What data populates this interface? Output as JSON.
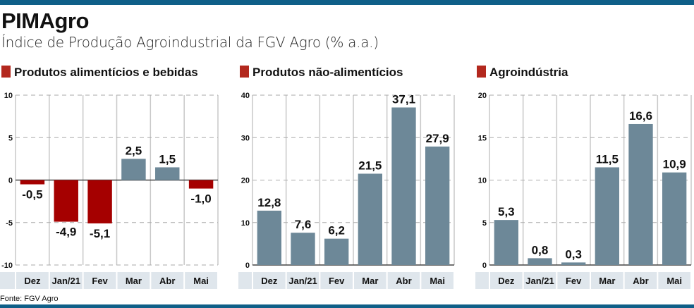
{
  "header": {
    "title": "PIMAgro",
    "subtitle": "Índice de Produção Agroindustrial da FGV Agro (% a.a.)"
  },
  "source": "Fonte: FGV Agro",
  "colors": {
    "bar": "#6d8898",
    "negative": "#a50000",
    "legend_marker": "#b3281e",
    "band": "#dfe6ec",
    "rule": "#0f5f88"
  },
  "chart_data": [
    {
      "type": "bar",
      "title": "Produtos alimentícios e bebidas",
      "categories": [
        "Dez",
        "Jan/21",
        "Fev",
        "Mar",
        "Abr",
        "Mai"
      ],
      "values": [
        -0.5,
        -4.9,
        -5.1,
        2.5,
        1.5,
        -1.0
      ],
      "labels": [
        "-0,5",
        "-4,9",
        "-5,1",
        "2,5",
        "1,5",
        "-1,0"
      ],
      "ylim": [
        -10,
        10
      ],
      "yticks": [
        10,
        5,
        0,
        -5,
        -10
      ],
      "ytick_labels": [
        "10",
        "5",
        "0",
        "-5",
        "-10"
      ],
      "grid": true
    },
    {
      "type": "bar",
      "title": "Produtos não-alimentícios",
      "categories": [
        "Dez",
        "Jan/21",
        "Fev",
        "Mar",
        "Abr",
        "Mai"
      ],
      "values": [
        12.8,
        7.6,
        6.2,
        21.5,
        37.1,
        27.9
      ],
      "labels": [
        "12,8",
        "7,6",
        "6,2",
        "21,5",
        "37,1",
        "27,9"
      ],
      "ylim": [
        0,
        40
      ],
      "yticks": [
        40,
        30,
        20,
        10,
        0
      ],
      "ytick_labels": [
        "40",
        "30",
        "20",
        "10",
        "0"
      ],
      "grid": true
    },
    {
      "type": "bar",
      "title": "Agroindústria",
      "categories": [
        "Dez",
        "Jan/21",
        "Fev",
        "Mar",
        "Abr",
        "Mai"
      ],
      "values": [
        5.3,
        0.8,
        0.3,
        11.5,
        16.6,
        10.9
      ],
      "labels": [
        "5,3",
        "0,8",
        "0,3",
        "11,5",
        "16,6",
        "10,9"
      ],
      "ylim": [
        0,
        20
      ],
      "yticks": [
        20,
        15,
        10,
        5,
        0
      ],
      "ytick_labels": [
        "20",
        "15",
        "10",
        "5",
        "0"
      ],
      "grid": true
    }
  ]
}
